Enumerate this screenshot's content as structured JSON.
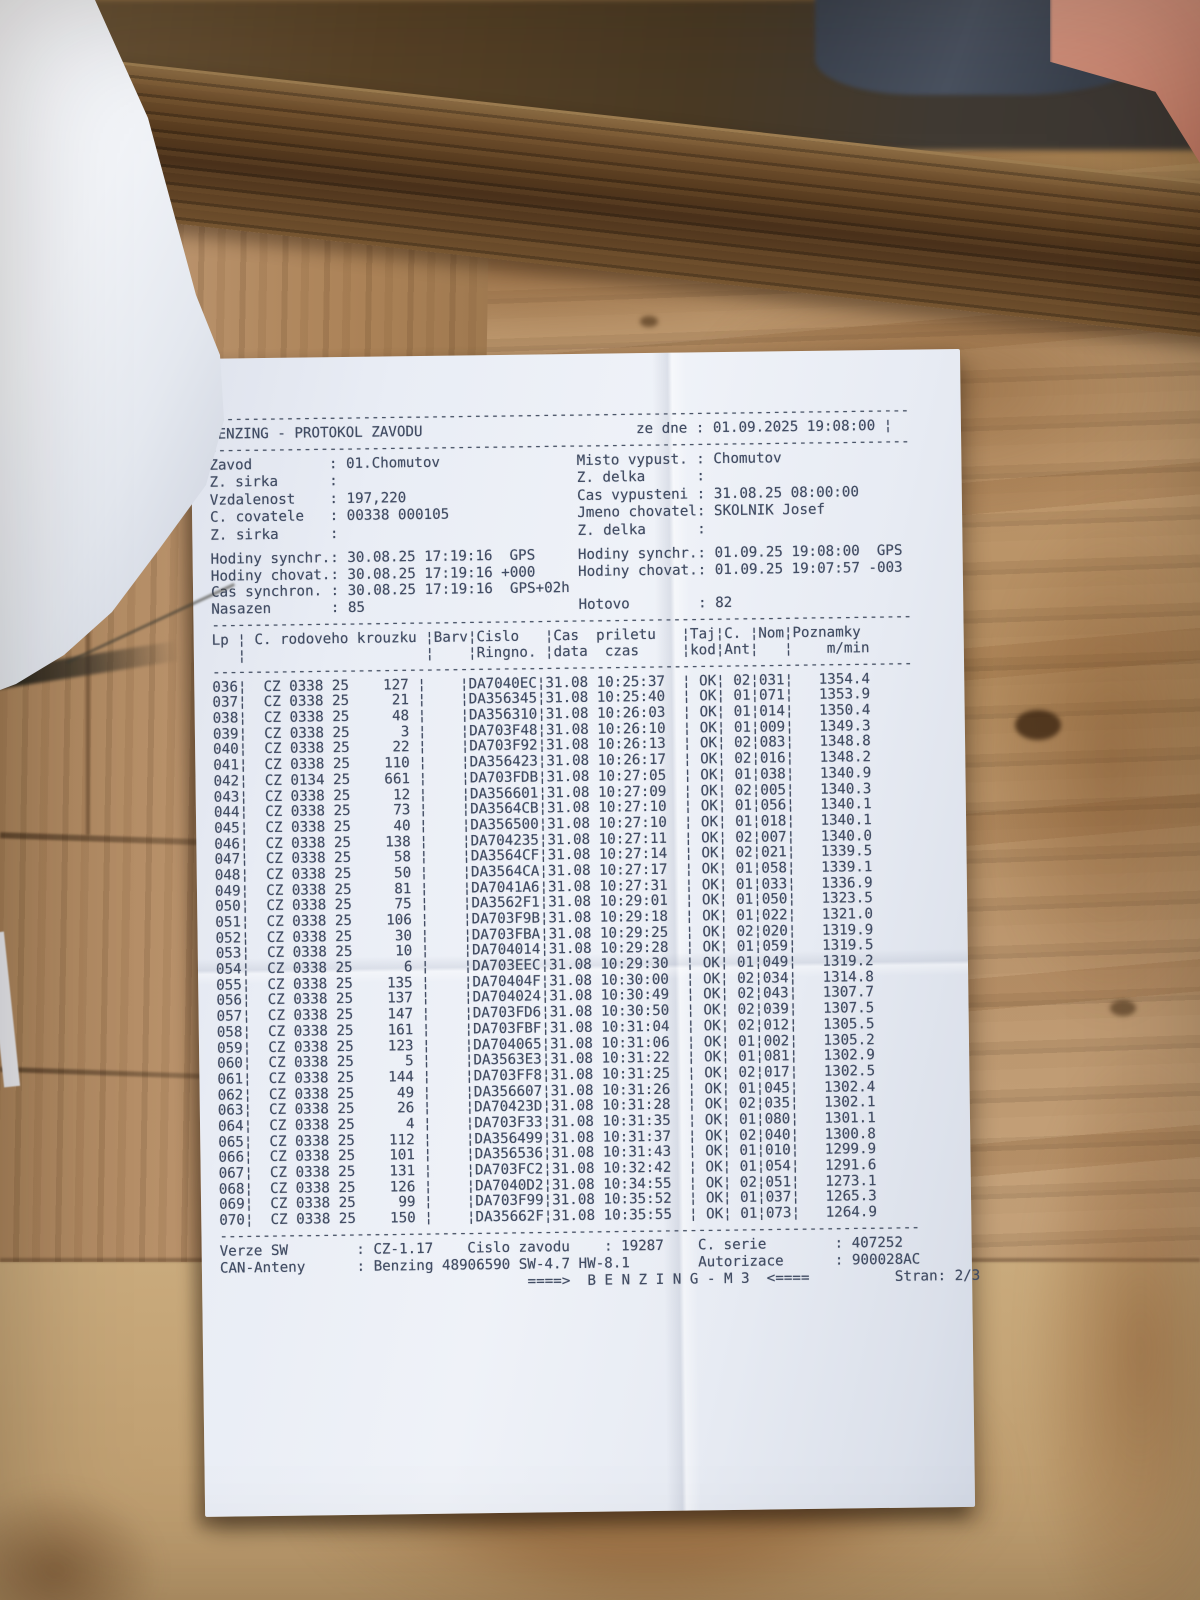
{
  "colors": {
    "paper": "#e9edf5",
    "ink": "#414c63",
    "wood_light": "#c09a6f",
    "wood_rail": "#563a1e",
    "wood_stain": "#8a5c34",
    "flap_paper": "#eef0f5",
    "denim": "#424a57",
    "skin": "#c8836e"
  },
  "document": {
    "header": {
      "title": "BENZING - PROTOKOL ZAVODU",
      "date_label": "ze dne",
      "date_value": "01.09.2025 19:08:00"
    },
    "info": [
      [
        "Zavod",
        "01.Chomutov",
        "Misto vypust.",
        "Chomutov"
      ],
      [
        "Z. sirka",
        "",
        "Z. delka",
        ""
      ],
      [
        "Vzdalenost",
        "197,220",
        "Cas vypusteni",
        "31.08.25 08:00:00"
      ],
      [
        "C. covatele",
        "00338 000105",
        "Jmeno chovatel",
        "SKOLNIK Josef"
      ],
      [
        "Z. sirka",
        "",
        "Z. delka",
        ""
      ]
    ],
    "sync_rows": [
      [
        "Hodiny synchr.: 30.08.25 17:19:16  GPS",
        "Hodiny synchr.: 01.09.25 19:08:00  GPS"
      ],
      [
        "Hodiny chovat.: 30.08.25 17:19:16 +000",
        "Hodiny chovat.: 01.09.25 19:07:57 -003"
      ],
      [
        "Cas synchron. : 30.08.25 17:19:16  GPS+02h",
        ""
      ]
    ],
    "counts": {
      "nasazen_label": "Nasazen",
      "nasazen": "85",
      "hotovo_label": "Hotovo",
      "hotovo": "82"
    },
    "table": {
      "col_header_line1": "Lp ¦ C. rodoveho krouzku ¦Barv¦Cislo   ¦Cas  priletu   ¦Taj¦C. ¦Nom¦Poznamky",
      "col_header_line2": "   ¦                     ¦    ¦Ringno. ¦data  czas     ¦kod¦Ant¦   ¦    m/min",
      "date": "31.08",
      "taj": "OK",
      "rows": [
        [
          "036",
          "CZ 0338 25",
          "127",
          "DA7040EC",
          "10:25:37",
          "02",
          "031",
          "1354.4"
        ],
        [
          "037",
          "CZ 0338 25",
          "21",
          "DA356345",
          "10:25:40",
          "01",
          "071",
          "1353.9"
        ],
        [
          "038",
          "CZ 0338 25",
          "48",
          "DA356310",
          "10:26:03",
          "01",
          "014",
          "1350.4"
        ],
        [
          "039",
          "CZ 0338 25",
          "3",
          "DA703F48",
          "10:26:10",
          "01",
          "009",
          "1349.3"
        ],
        [
          "040",
          "CZ 0338 25",
          "22",
          "DA703F92",
          "10:26:13",
          "02",
          "083",
          "1348.8"
        ],
        [
          "041",
          "CZ 0338 25",
          "110",
          "DA356423",
          "10:26:17",
          "02",
          "016",
          "1348.2"
        ],
        [
          "042",
          "CZ 0134 25",
          "661",
          "DA703FDB",
          "10:27:05",
          "01",
          "038",
          "1340.9"
        ],
        [
          "043",
          "CZ 0338 25",
          "12",
          "DA356601",
          "10:27:09",
          "02",
          "005",
          "1340.3"
        ],
        [
          "044",
          "CZ 0338 25",
          "73",
          "DA3564CB",
          "10:27:10",
          "01",
          "056",
          "1340.1"
        ],
        [
          "045",
          "CZ 0338 25",
          "40",
          "DA356500",
          "10:27:10",
          "01",
          "018",
          "1340.1"
        ],
        [
          "046",
          "CZ 0338 25",
          "138",
          "DA704235",
          "10:27:11",
          "02",
          "007",
          "1340.0"
        ],
        [
          "047",
          "CZ 0338 25",
          "58",
          "DA3564CF",
          "10:27:14",
          "02",
          "021",
          "1339.5"
        ],
        [
          "048",
          "CZ 0338 25",
          "50",
          "DA3564CA",
          "10:27:17",
          "01",
          "058",
          "1339.1"
        ],
        [
          "049",
          "CZ 0338 25",
          "81",
          "DA7041A6",
          "10:27:31",
          "01",
          "033",
          "1336.9"
        ],
        [
          "050",
          "CZ 0338 25",
          "75",
          "DA3562F1",
          "10:29:01",
          "01",
          "050",
          "1323.5"
        ],
        [
          "051",
          "CZ 0338 25",
          "106",
          "DA703F9B",
          "10:29:18",
          "01",
          "022",
          "1321.0"
        ],
        [
          "052",
          "CZ 0338 25",
          "30",
          "DA703FBA",
          "10:29:25",
          "02",
          "020",
          "1319.9"
        ],
        [
          "053",
          "CZ 0338 25",
          "10",
          "DA704014",
          "10:29:28",
          "01",
          "059",
          "1319.5"
        ],
        [
          "054",
          "CZ 0338 25",
          "6",
          "DA703EEC",
          "10:29:30",
          "01",
          "049",
          "1319.2"
        ],
        [
          "055",
          "CZ 0338 25",
          "135",
          "DA70404F",
          "10:30:00",
          "02",
          "034",
          "1314.8"
        ],
        [
          "056",
          "CZ 0338 25",
          "137",
          "DA704024",
          "10:30:49",
          "02",
          "043",
          "1307.7"
        ],
        [
          "057",
          "CZ 0338 25",
          "147",
          "DA703FD6",
          "10:30:50",
          "02",
          "039",
          "1307.5"
        ],
        [
          "058",
          "CZ 0338 25",
          "161",
          "DA703FBF",
          "10:31:04",
          "02",
          "012",
          "1305.5"
        ],
        [
          "059",
          "CZ 0338 25",
          "123",
          "DA704065",
          "10:31:06",
          "01",
          "002",
          "1305.2"
        ],
        [
          "060",
          "CZ 0338 25",
          "5",
          "DA3563E3",
          "10:31:22",
          "01",
          "081",
          "1302.9"
        ],
        [
          "061",
          "CZ 0338 25",
          "144",
          "DA703FF8",
          "10:31:25",
          "02",
          "017",
          "1302.5"
        ],
        [
          "062",
          "CZ 0338 25",
          "49",
          "DA356607",
          "10:31:26",
          "01",
          "045",
          "1302.4"
        ],
        [
          "063",
          "CZ 0338 25",
          "26",
          "DA70423D",
          "10:31:28",
          "02",
          "035",
          "1302.1"
        ],
        [
          "064",
          "CZ 0338 25",
          "4",
          "DA703F33",
          "10:31:35",
          "01",
          "080",
          "1301.1"
        ],
        [
          "065",
          "CZ 0338 25",
          "112",
          "DA356499",
          "10:31:37",
          "02",
          "040",
          "1300.8"
        ],
        [
          "066",
          "CZ 0338 25",
          "101",
          "DA356536",
          "10:31:43",
          "01",
          "010",
          "1299.9"
        ],
        [
          "067",
          "CZ 0338 25",
          "131",
          "DA703FC2",
          "10:32:42",
          "01",
          "054",
          "1291.6"
        ],
        [
          "068",
          "CZ 0338 25",
          "126",
          "DA7040D2",
          "10:34:55",
          "02",
          "051",
          "1273.1"
        ],
        [
          "069",
          "CZ 0338 25",
          "99",
          "DA703F99",
          "10:35:52",
          "01",
          "037",
          "1265.3"
        ],
        [
          "070",
          "CZ 0338 25",
          "150",
          "DA35662F",
          "10:35:55",
          "01",
          "073",
          "1264.9"
        ]
      ]
    },
    "footer": {
      "verze_label": "Verze SW",
      "verze": "CZ-1.17",
      "cislo_label": "Cislo zavodu",
      "cislo": "19287",
      "serie_label": "C. serie",
      "serie": "407252",
      "anteny_label": "CAN-Anteny",
      "anteny": "Benzing 48906590 SW-4.7 HW-8.1",
      "autorizace_label": "Autorizace",
      "autorizace": "900028AC",
      "banner": "====>  B E N Z I N G - M 3  <====",
      "stran_label": "Stran:",
      "stran": "2/3"
    }
  }
}
